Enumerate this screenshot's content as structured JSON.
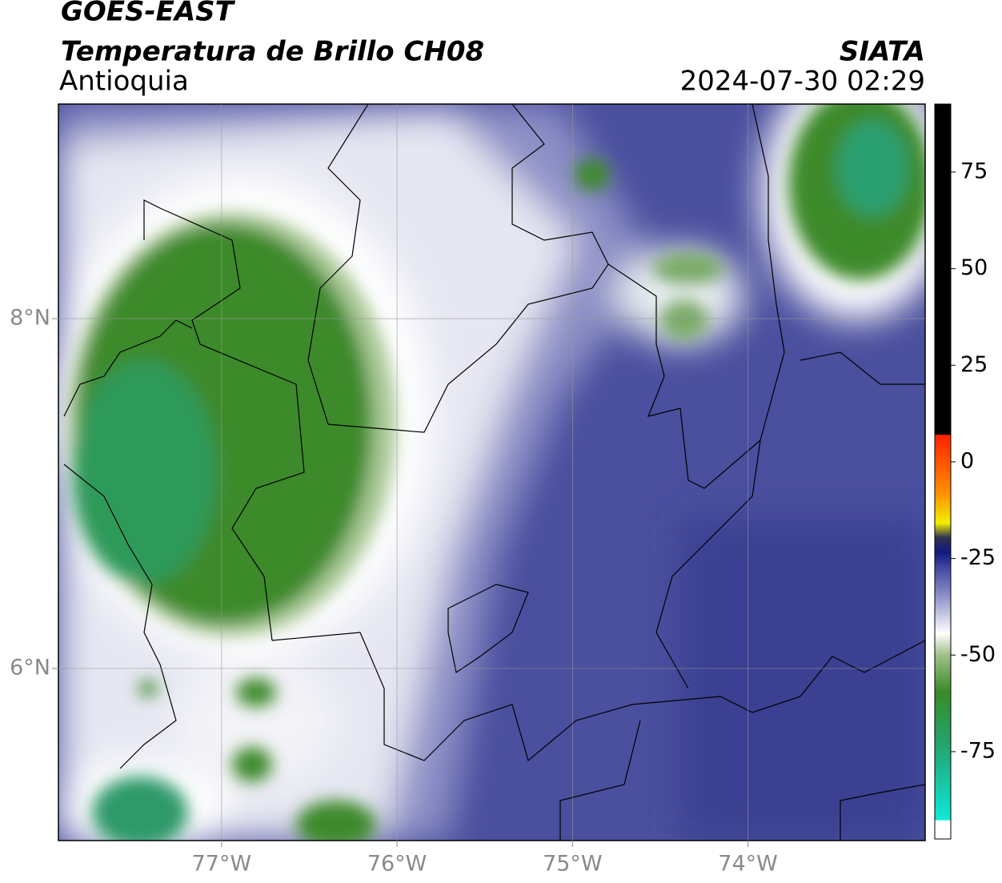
{
  "header": {
    "satellite": "GOES-EAST",
    "product": "Temperatura de Brillo CH08",
    "region": "Antioquia",
    "source": "SIATA",
    "timestamp": "2024-07-30 02:29"
  },
  "map": {
    "xlim": [
      -77.93,
      -72.99
    ],
    "ylim": [
      5.016,
      9.227
    ],
    "xticks": [
      {
        "value": -77,
        "label": "77°W"
      },
      {
        "value": -76,
        "label": "76°W"
      },
      {
        "value": -75,
        "label": "75°W"
      },
      {
        "value": -74,
        "label": "74°W"
      }
    ],
    "yticks": [
      {
        "value": 6,
        "label": "6°N"
      },
      {
        "value": 8,
        "label": "8°N"
      }
    ],
    "grid": true
  },
  "colorbar": {
    "lim": [
      -97.6,
      92.6
    ],
    "ticks": [
      -75,
      -50,
      -25,
      0,
      25,
      50,
      75
    ]
  }
}
